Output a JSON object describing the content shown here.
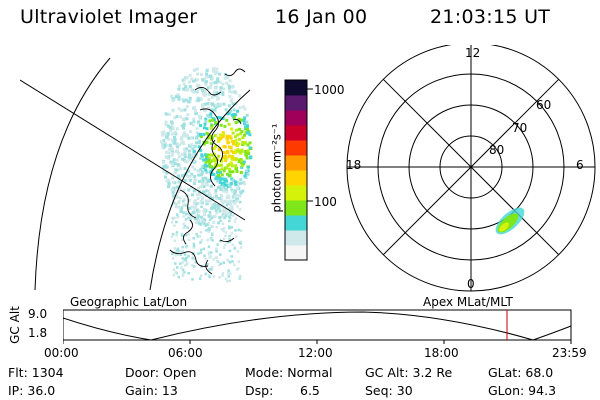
{
  "header": {
    "instrument": "Ultraviolet Imager",
    "date": "16 Jan 00",
    "time": "21:03:15 UT"
  },
  "colorbar": {
    "label": "photon cm⁻²s⁻¹",
    "tick_labels": [
      "1000",
      "100"
    ],
    "scale": "log",
    "colors": [
      "#f6f6f6",
      "#cfe9ea",
      "#44d6d6",
      "#7fe61a",
      "#d4f20a",
      "#ffd400",
      "#ff9a00",
      "#ff3a00",
      "#c8002a",
      "#a0005a",
      "#5a1a6e",
      "#0e0a30"
    ]
  },
  "polar": {
    "mlt_labels": {
      "top": "12",
      "left": "18",
      "right": "6",
      "bottom": "0"
    },
    "lat_labels": [
      "60",
      "70",
      "80"
    ]
  },
  "plot_labels": {
    "left": "Geographic Lat/Lon",
    "right": "Apex MLat/MLT"
  },
  "altitude_plot": {
    "ylabel": "GC Alt",
    "ymax_label": "9.0",
    "ymin_label": "1.8",
    "x_tick_labels": [
      "00:00",
      "06:00",
      "12:00",
      "18:00",
      "23:59"
    ],
    "marker_color": "#cc0000"
  },
  "footer": {
    "flt": "Flt: 1304",
    "ip": "IP: 36.0",
    "door": "Door: Open",
    "gain": "Gain: 13",
    "mode": "Mode: Normal",
    "dsp_label": "Dsp:",
    "dsp_value": "6.5",
    "gc_alt": "GC Alt: 3.2 Re",
    "seq": "Seq: 30",
    "glat": "GLat: 68.0",
    "glon": "GLon: 94.3"
  }
}
